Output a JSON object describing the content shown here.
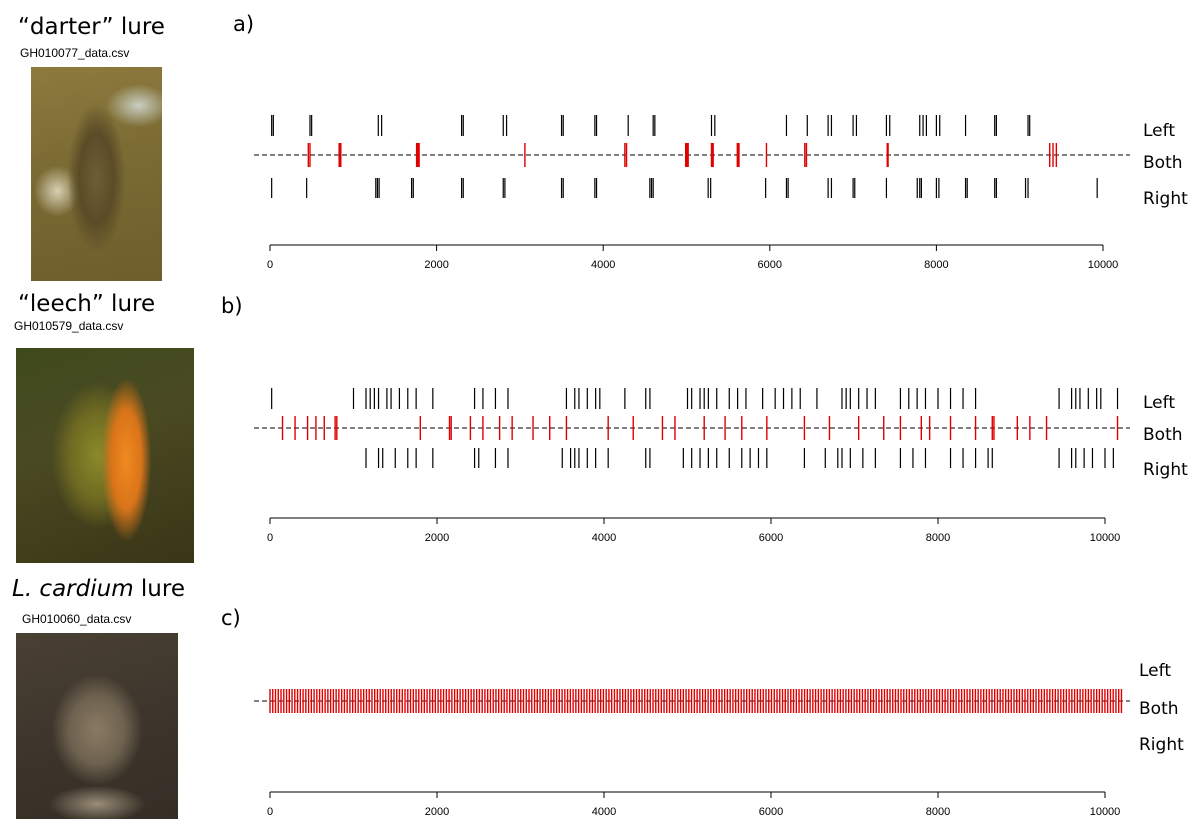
{
  "lures": [
    {
      "title_quote": "“darter”",
      "title_rest": " lure",
      "file": "GH010077_data.csv",
      "photo_name": "darter-lure-photo"
    },
    {
      "title_quote": "“leech”",
      "title_rest": " lure",
      "file": "GH010579_data.csv",
      "photo_name": "leech-lure-photo"
    },
    {
      "title_italic": "L. cardium",
      "title_rest": " lure",
      "file": "GH010060_data.csv",
      "photo_name": "l-cardium-lure-photo"
    }
  ],
  "colors": {
    "left_right": "#000000",
    "both": "#e00000"
  },
  "chart_data": [
    {
      "type": "event-raster",
      "panel": "a)",
      "row_labels": [
        "Left",
        "Both",
        "Right"
      ],
      "xlim": [
        0,
        10000
      ],
      "xticks": [
        0,
        2000,
        4000,
        6000,
        8000,
        10000
      ],
      "left_events": [
        20,
        40,
        480,
        500,
        1300,
        1340,
        2300,
        2320,
        2800,
        2840,
        3500,
        3520,
        3900,
        3920,
        4300,
        4600,
        4620,
        5300,
        5340,
        6200,
        6450,
        6700,
        6740,
        7000,
        7040,
        7400,
        7440,
        7800,
        7840,
        7880,
        8000,
        8040,
        8350,
        8700,
        8720,
        9100,
        9120
      ],
      "both_events": [
        460,
        480,
        830,
        840,
        850,
        1760,
        1770,
        1780,
        1790,
        3060,
        4260,
        4280,
        4990,
        5000,
        5010,
        5020,
        5300,
        5310,
        5320,
        5610,
        5620,
        5630,
        5960,
        6420,
        6440,
        7410,
        7420,
        9360,
        9400,
        9440
      ],
      "right_events": [
        20,
        440,
        1270,
        1290,
        1310,
        1700,
        1720,
        2300,
        2320,
        2800,
        2820,
        3500,
        3520,
        3900,
        3920,
        4560,
        4580,
        4600,
        5260,
        5290,
        5950,
        6200,
        6220,
        6700,
        6740,
        7000,
        7020,
        7400,
        7770,
        7800,
        7820,
        8000,
        8030,
        8350,
        8370,
        8700,
        8720,
        9070,
        9100,
        9930
      ]
    },
    {
      "type": "event-raster",
      "panel": "b)",
      "row_labels": [
        "Left",
        "Both",
        "Right"
      ],
      "xlim": [
        0,
        10000
      ],
      "xticks": [
        0,
        2000,
        4000,
        6000,
        8000,
        10000
      ],
      "left_events": [
        20,
        1000,
        1150,
        1200,
        1250,
        1300,
        1400,
        1450,
        1550,
        1650,
        1750,
        1950,
        2450,
        2550,
        2700,
        2850,
        3550,
        3650,
        3700,
        3800,
        3900,
        3950,
        4250,
        4500,
        4550,
        5000,
        5050,
        5150,
        5200,
        5250,
        5350,
        5500,
        5600,
        5700,
        5900,
        6050,
        6150,
        6250,
        6350,
        6550,
        6850,
        6900,
        6950,
        7050,
        7150,
        7250,
        7550,
        7650,
        7750,
        7850,
        8000,
        8150,
        8300,
        8450,
        9450,
        9600,
        9650,
        9700,
        9800,
        9900,
        9950,
        10150
      ],
      "both_events": [
        150,
        300,
        450,
        550,
        650,
        780,
        800,
        1800,
        2150,
        2170,
        2400,
        2550,
        2750,
        2900,
        3150,
        3350,
        3550,
        4050,
        4350,
        4700,
        4850,
        5200,
        5450,
        5650,
        5950,
        6400,
        6700,
        7050,
        7350,
        7550,
        7800,
        7900,
        8150,
        8450,
        8650,
        8670,
        8950,
        9100,
        9300,
        10150
      ],
      "right_events": [
        1150,
        1300,
        1350,
        1500,
        1650,
        1750,
        1950,
        2450,
        2500,
        2700,
        2850,
        3500,
        3600,
        3650,
        3700,
        3800,
        3900,
        4050,
        4500,
        4550,
        4950,
        5050,
        5150,
        5250,
        5350,
        5500,
        5650,
        5750,
        5850,
        5950,
        6400,
        6650,
        6800,
        6850,
        6950,
        7100,
        7250,
        7550,
        7700,
        7850,
        8150,
        8300,
        8450,
        8600,
        8650,
        9450,
        9600,
        9650,
        9750,
        9850,
        10000,
        10100
      ]
    },
    {
      "type": "event-raster",
      "panel": "c)",
      "row_labels": [
        "Left",
        "Both",
        "Right"
      ],
      "xlim": [
        0,
        10000
      ],
      "xticks": [
        0,
        2000,
        4000,
        6000,
        8000,
        10000
      ],
      "left_events": [],
      "both_range": [
        0,
        10200
      ],
      "both_interval": 33,
      "right_events": []
    }
  ]
}
